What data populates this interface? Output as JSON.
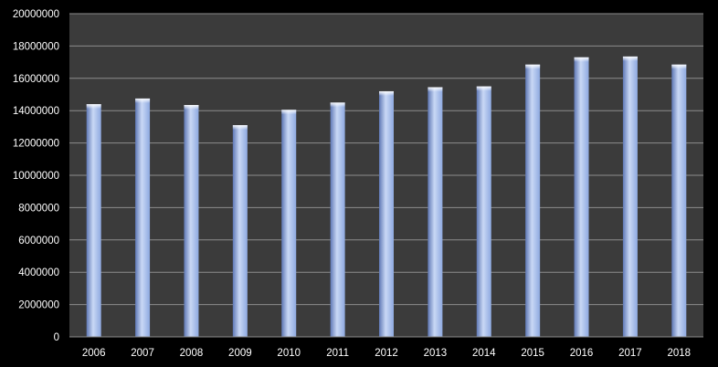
{
  "chart_data": {
    "type": "bar",
    "categories": [
      "2006",
      "2007",
      "2008",
      "2009",
      "2010",
      "2011",
      "2012",
      "2013",
      "2014",
      "2015",
      "2016",
      "2017",
      "2018"
    ],
    "values": [
      14400000,
      14750000,
      14350000,
      13100000,
      14050000,
      14500000,
      15200000,
      15450000,
      15500000,
      16850000,
      17300000,
      17350000,
      16850000
    ],
    "ylim": [
      0,
      20000000
    ],
    "yticks": [
      "0",
      "2000000",
      "4000000",
      "6000000",
      "8000000",
      "10000000",
      "12000000",
      "14000000",
      "16000000",
      "18000000",
      "20000000"
    ],
    "grid": true,
    "legend": "none",
    "title": "",
    "xlabel": "",
    "ylabel": ""
  },
  "colors": {
    "background": "#000000",
    "plot_area": "#3b3b3b",
    "gridline": "#8c8c8c",
    "bar": "#8ea9e0",
    "bar_highlight": "#c9d8f5",
    "bar_shadow": "#5f78b5",
    "text": "#ffffff"
  }
}
